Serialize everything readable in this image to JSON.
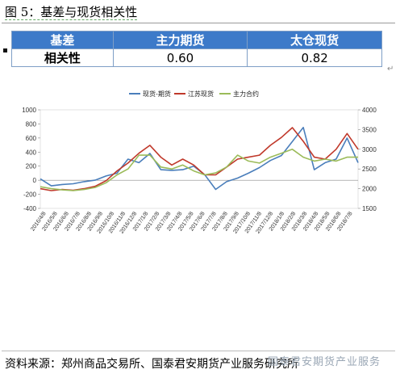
{
  "figure": {
    "title": "图 5：基差与现货相关性",
    "source": "资料来源：郑州商品交易所、国泰君安期货产业服务研究所",
    "watermark": "国泰君安期货产业服务"
  },
  "corr_table": {
    "headers": [
      "基差",
      "主力期货",
      "太仓现货"
    ],
    "row_label": "相关性",
    "values": [
      "0.60",
      "0.82"
    ]
  },
  "chart_data": {
    "type": "line",
    "title": "",
    "legend": [
      "现货-期货",
      "江苏现货",
      "主力合约"
    ],
    "legend_position": "top",
    "colors": {
      "basis": "#4a7ebb",
      "js": "#c0392b",
      "main": "#9bbb59"
    },
    "y_left": {
      "min": -400,
      "max": 1000,
      "ticks": [
        -400,
        -200,
        0,
        200,
        400,
        600,
        800,
        1000
      ]
    },
    "y_right": {
      "min": 1500,
      "max": 4000,
      "ticks": [
        1500,
        2000,
        2500,
        3000,
        3500,
        4000
      ]
    },
    "x_ticks": [
      "2016/4/8",
      "2016/5/8",
      "2016/6/8",
      "2016/7/8",
      "2016/8/8",
      "2016/9/8",
      "2016/10/8",
      "2016/11/8",
      "2016/12/8",
      "2017/1/8",
      "2017/2/8",
      "2017/3/8",
      "2017/4/8",
      "2017/5/8",
      "2017/6/8",
      "2017/7/8",
      "2017/8/8",
      "2017/9/8",
      "2017/10/8",
      "2017/11/8",
      "2017/12/8",
      "2018/1/8",
      "2018/2/8",
      "2018/3/8",
      "2018/4/8",
      "2018/5/8",
      "2018/6/8",
      "2018/7/8"
    ],
    "series": [
      {
        "name": "现货-期货",
        "axis": "left",
        "key": "basis",
        "values": [
          20,
          -80,
          -60,
          -50,
          -20,
          0,
          60,
          100,
          300,
          250,
          380,
          150,
          140,
          150,
          200,
          80,
          -130,
          -20,
          30,
          100,
          180,
          280,
          350,
          550,
          750,
          150,
          250,
          300,
          600,
          250
        ]
      },
      {
        "name": "江苏现货",
        "axis": "right",
        "key": "js",
        "values": [
          2000,
          1950,
          1980,
          1960,
          2000,
          2060,
          2200,
          2450,
          2650,
          2900,
          3100,
          2800,
          2600,
          2750,
          2600,
          2350,
          2350,
          2550,
          2750,
          2800,
          2850,
          3100,
          3300,
          3550,
          3200,
          2800,
          2750,
          3000,
          3400,
          3000
        ]
      },
      {
        "name": "主力合约",
        "axis": "right",
        "key": "main",
        "values": [
          2050,
          2000,
          1970,
          1950,
          1980,
          2030,
          2150,
          2350,
          2500,
          2850,
          2850,
          2550,
          2500,
          2600,
          2450,
          2350,
          2400,
          2550,
          2850,
          2700,
          2650,
          2800,
          2900,
          3000,
          2800,
          2700,
          2750,
          2700,
          2800,
          2800
        ]
      }
    ]
  }
}
